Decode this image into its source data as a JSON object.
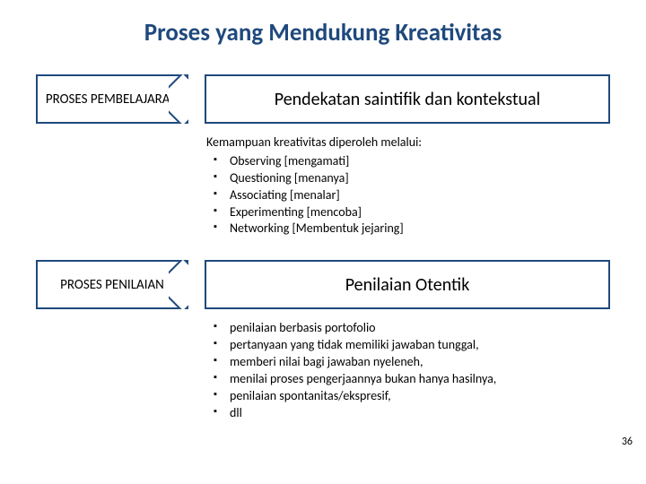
{
  "title": "Proses yang Mendukung Kreativitas",
  "pageNumber": "36",
  "section1": {
    "leftLabel": "PROSES PEMBELAJARAN",
    "rightLabel": "Pendekatan saintifik dan kontekstual",
    "intro": "Kemampuan kreativitas diperoleh melalui:",
    "items": {
      "0": "Observing [mengamati]",
      "1": "Questioning [menanya]",
      "2": "Associating [menalar]",
      "3": "Experimenting [mencoba]",
      "4": "Networking [Membentuk jejaring]"
    }
  },
  "section2": {
    "leftLabel": "PROSES PENILAIAN",
    "rightLabel": "Penilaian Otentik",
    "items": {
      "0": "penilaian berbasis portofolio",
      "1": "pertanyaan yang tidak memiliki jawaban tunggal,",
      "2": "memberi nilai bagi jawaban nyeleneh,",
      "3": "menilai proses pengerjaannya bukan hanya hasilnya,",
      "4": "penilaian spontanitas/ekspresif,",
      "5": "dll"
    }
  },
  "colors": {
    "titleColor": "#1f497d",
    "borderColor": "#1f497d",
    "textColor": "#000000",
    "background": "#ffffff"
  }
}
